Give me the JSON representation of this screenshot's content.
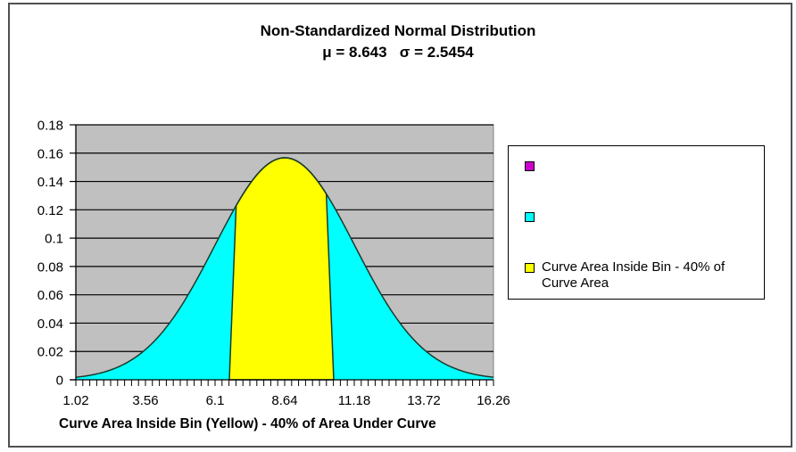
{
  "chart_data": {
    "type": "area",
    "title": "Non-Standardized Normal Distribution",
    "subtitle": "μ = 8.643   σ = 2.5454",
    "mu": 8.643,
    "sigma": 2.5454,
    "xlabel": "Curve Area Inside Bin (Yellow) - 40% of Area Under Curve",
    "ylabel": "",
    "xlim": [
      1.02,
      16.26
    ],
    "ylim": [
      0,
      0.18
    ],
    "y_ticks": [
      "0",
      "0.02",
      "0.04",
      "0.06",
      "0.08",
      "0.1",
      "0.12",
      "0.14",
      "0.16",
      "0.18"
    ],
    "y_tick_values": [
      0,
      0.02,
      0.04,
      0.06,
      0.08,
      0.1,
      0.12,
      0.14,
      0.16,
      0.18
    ],
    "x_ticks": [
      "1.02",
      "3.56",
      "6.1",
      "8.64",
      "11.18",
      "13.72",
      "16.26"
    ],
    "x_tick_values": [
      1.02,
      3.56,
      6.1,
      8.64,
      11.18,
      13.72,
      16.26
    ],
    "minor_tick_step": 0.254,
    "grid": "horizontal",
    "plot_background": "#c0c0c0",
    "series": [
      {
        "name": "",
        "color": "#cc00cc",
        "description": "Normal curve outline (magenta legend entry, no label)"
      },
      {
        "name": "",
        "color": "#00ffff",
        "description": "Full area under curve (cyan)",
        "x_from": 1.02,
        "x_to": 16.26
      },
      {
        "name": "Curve Area Inside Bin - 40% of Curve Area",
        "color": "#ffff00",
        "bin_bottom": [
          6.62,
          10.43
        ],
        "bin_top": [
          6.87,
          10.16
        ]
      }
    ],
    "sample_points": {
      "x": [
        1.02,
        3.56,
        6.1,
        8.64,
        11.18,
        13.72,
        16.26
      ],
      "y": [
        0.0017,
        0.0213,
        0.0952,
        0.1567,
        0.0952,
        0.0213,
        0.0017
      ]
    },
    "legend_position": "right"
  },
  "legend": {
    "items": [
      {
        "label": "",
        "color": "#cc00cc"
      },
      {
        "label": "",
        "color": "#00ffff"
      },
      {
        "label": "Curve Area Inside Bin - 40% of Curve Area",
        "color": "#ffff00"
      }
    ]
  }
}
